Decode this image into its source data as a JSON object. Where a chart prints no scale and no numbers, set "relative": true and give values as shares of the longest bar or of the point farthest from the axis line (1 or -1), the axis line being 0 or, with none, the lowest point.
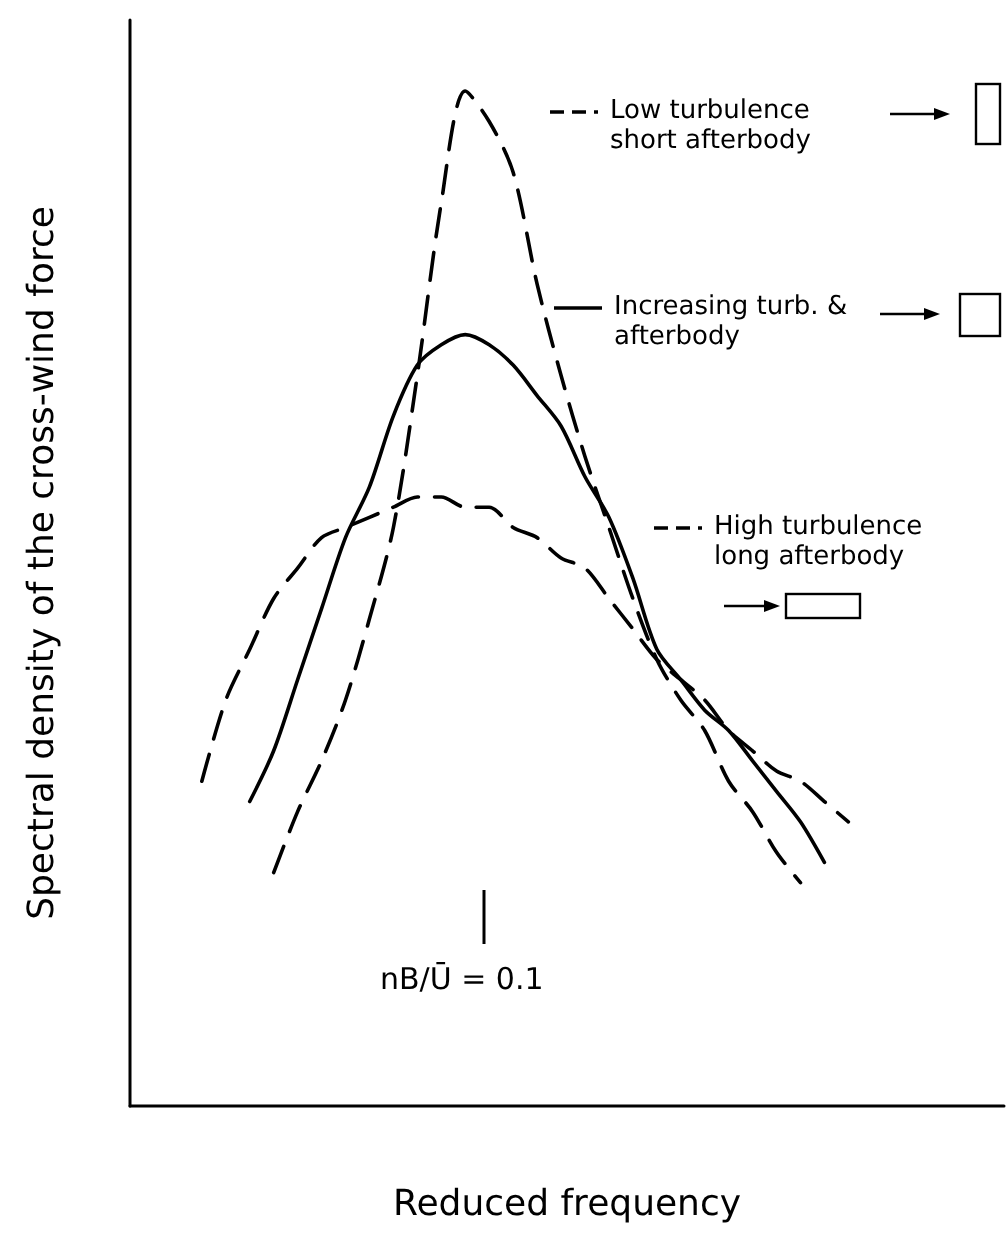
{
  "chart_data": {
    "type": "line",
    "relative": true,
    "xlabel": "Reduced frequency",
    "ylabel": "Spectral density of the cross-wind force",
    "categories": [
      null,
      null,
      null,
      null,
      null,
      null,
      null,
      null,
      null,
      null,
      null,
      null,
      null,
      null,
      null,
      null,
      null,
      null,
      null,
      null,
      null,
      null,
      null,
      null,
      null,
      null,
      null,
      null
    ],
    "series": [
      {
        "name": "Low turbulence short afterbody",
        "color": "#000000",
        "line_style": "dashed",
        "values": [
          null,
          null,
          null,
          0.23,
          0.29,
          0.34,
          0.4,
          0.48,
          0.57,
          0.72,
          0.89,
          1,
          0.97,
          0.92,
          0.81,
          0.72,
          0.64,
          0.57,
          0.5,
          0.44,
          0.4,
          0.37,
          0.32,
          0.29,
          0.25,
          0.22,
          null,
          null
        ]
      },
      {
        "name": "Increasing turb. & afterbody",
        "color": "#000000",
        "line_style": "solid",
        "values": [
          null,
          null,
          0.3,
          0.35,
          0.42,
          0.49,
          0.56,
          0.61,
          0.68,
          0.73,
          0.75,
          0.76,
          0.75,
          0.73,
          0.7,
          0.67,
          0.62,
          0.58,
          0.52,
          0.45,
          0.42,
          0.39,
          0.37,
          0.34,
          0.31,
          0.28,
          0.24,
          null
        ]
      },
      {
        "name": "High turbulence long afterbody",
        "color": "#000000",
        "line_style": "dashed",
        "values": [
          0.32,
          0.4,
          0.45,
          0.5,
          0.53,
          0.56,
          0.57,
          0.58,
          0.59,
          0.6,
          0.6,
          0.59,
          0.59,
          0.57,
          0.56,
          0.54,
          0.53,
          0.5,
          0.47,
          0.44,
          0.42,
          0.4,
          0.37,
          0.35,
          0.33,
          0.32,
          0.3,
          0.28
        ]
      }
    ],
    "annotations": [
      "nB/Ū = 0.1"
    ],
    "marker": "none",
    "legend": "right",
    "grid": false
  }
}
